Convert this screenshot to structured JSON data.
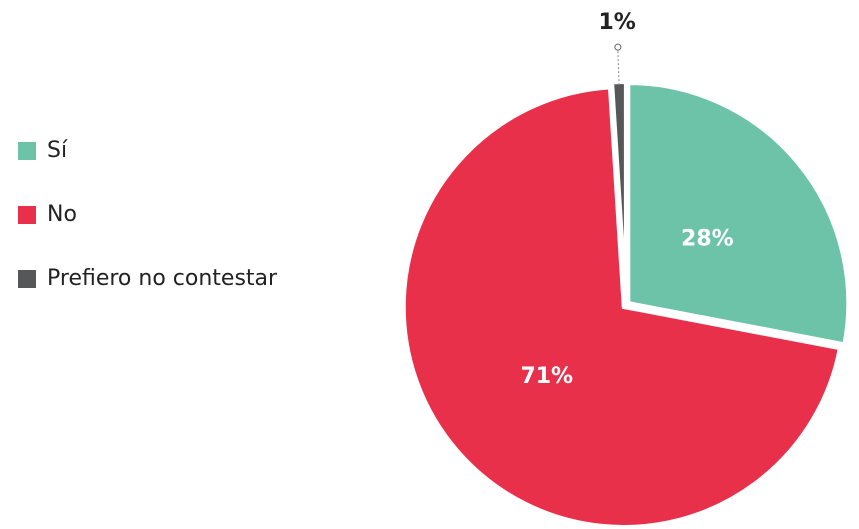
{
  "chart_data": {
    "type": "pie",
    "categories": [
      "Sí",
      "No",
      "Prefiero no contestar"
    ],
    "values": [
      28,
      71,
      1
    ],
    "value_labels": [
      "28%",
      "71%",
      "1%"
    ],
    "colors": [
      "#6dc3a8",
      "#e8304b",
      "#555759"
    ],
    "legend": "left"
  }
}
